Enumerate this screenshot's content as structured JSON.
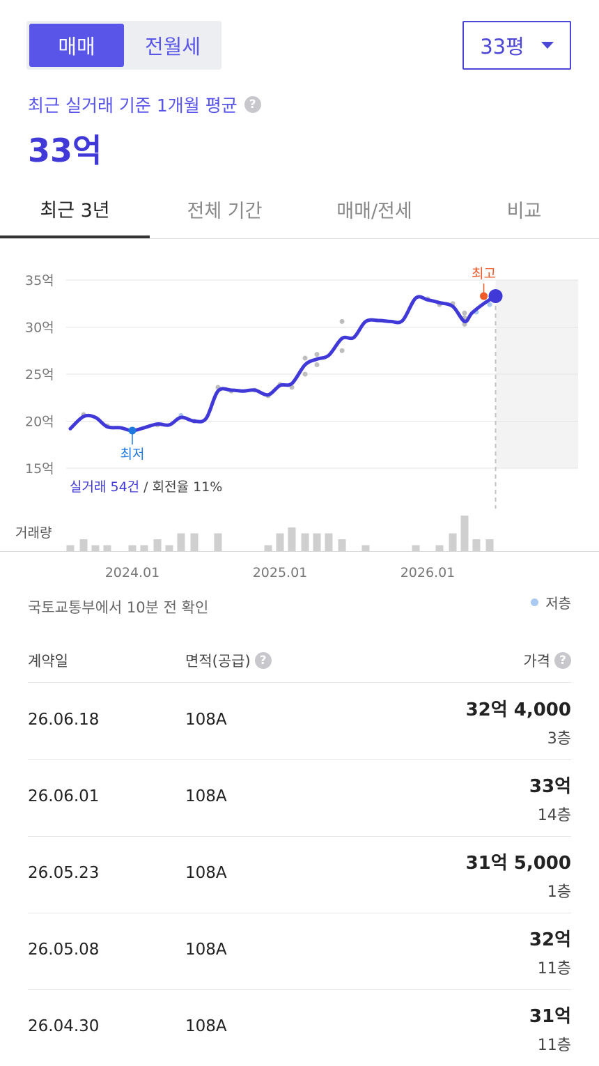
{
  "segment": {
    "sale": "매매",
    "rent": "전월세"
  },
  "area_selector": {
    "value": "33평",
    "icon": "caret-down-icon"
  },
  "summary": {
    "label": "최근 실거래 기준 1개월 평균",
    "help": "?",
    "value": "33억"
  },
  "tabs": [
    {
      "label": "최근 3년"
    },
    {
      "label": "전체 기간"
    },
    {
      "label": "매매/전세"
    },
    {
      "label": "비교"
    }
  ],
  "colors": {
    "accent": "#4039d8",
    "high": "#f05a28",
    "low": "#1f78e0",
    "low_floor": "#a9c9f0",
    "dot": "#bdbdbd"
  },
  "chart_data": {
    "type": "line",
    "y_unit": "억",
    "ylim": [
      15,
      35
    ],
    "y_ticks": [
      "35억",
      "30억",
      "25억",
      "20억",
      "15억"
    ],
    "x_ticks": [
      "2024.01",
      "2025.01",
      "2026.01"
    ],
    "x_tick_values": [
      2024.0,
      2025.0,
      2026.0
    ],
    "grid": true,
    "line": {
      "x": [
        2023.58,
        2023.67,
        2023.75,
        2023.83,
        2023.92,
        2024.0,
        2024.08,
        2024.17,
        2024.25,
        2024.33,
        2024.42,
        2024.5,
        2024.58,
        2024.67,
        2024.75,
        2024.83,
        2024.92,
        2025.0,
        2025.08,
        2025.17,
        2025.25,
        2025.33,
        2025.42,
        2025.5,
        2025.58,
        2025.67,
        2025.75,
        2025.83,
        2025.92,
        2026.0,
        2026.08,
        2026.17,
        2026.25,
        2026.3,
        2026.38,
        2026.46
      ],
      "y": [
        19.2,
        20.5,
        20.4,
        19.4,
        19.3,
        19.0,
        19.3,
        19.7,
        19.6,
        20.4,
        20.0,
        20.3,
        23.2,
        23.3,
        23.2,
        23.3,
        22.8,
        23.8,
        24.0,
        26.0,
        26.6,
        27.0,
        28.8,
        28.9,
        30.6,
        30.7,
        30.6,
        30.7,
        33.1,
        32.9,
        32.6,
        32.2,
        30.6,
        31.5,
        32.5,
        33.3
      ]
    },
    "trades": {
      "x": [
        2023.67,
        2023.83,
        2024.0,
        2024.17,
        2024.33,
        2024.42,
        2024.58,
        2024.67,
        2024.83,
        2024.92,
        2025.0,
        2025.08,
        2025.17,
        2025.17,
        2025.25,
        2025.25,
        2025.42,
        2025.42,
        2026.0,
        2026.08,
        2026.17,
        2026.25,
        2026.25,
        2026.25,
        2026.33,
        2026.42
      ],
      "y": [
        20.7,
        19.5,
        19.0,
        19.6,
        20.6,
        20.0,
        23.6,
        23.2,
        23.3,
        22.7,
        23.9,
        23.6,
        26.7,
        25.0,
        27.1,
        26.0,
        30.6,
        27.5,
        33.0,
        32.4,
        32.5,
        31.5,
        31.0,
        30.3,
        31.6,
        32.4
      ],
      "floor_low": [
        false,
        false,
        false,
        false,
        true,
        false,
        false,
        false,
        false,
        false,
        false,
        false,
        false,
        false,
        false,
        false,
        false,
        false,
        false,
        false,
        false,
        false,
        false,
        false,
        true,
        true
      ]
    },
    "lowest": {
      "label": "최저",
      "x": 2024.0,
      "y": 19.0
    },
    "highest": {
      "label": "최고",
      "x": 2026.38,
      "y": 33.3
    },
    "current": {
      "x": 2026.46,
      "y": 33.3
    },
    "forecast_start": 2026.46,
    "volume": {
      "label": "거래량",
      "x": [
        2023.58,
        2023.67,
        2023.75,
        2023.83,
        2024.0,
        2024.08,
        2024.17,
        2024.25,
        2024.33,
        2024.42,
        2024.58,
        2024.92,
        2025.0,
        2025.08,
        2025.17,
        2025.25,
        2025.33,
        2025.42,
        2025.58,
        2025.92,
        2026.08,
        2026.17,
        2026.25,
        2026.33,
        2026.42
      ],
      "count": [
        1,
        2,
        1,
        1,
        1,
        1,
        2,
        1,
        3,
        3,
        3,
        1,
        3,
        4,
        3,
        3,
        3,
        2,
        1,
        1,
        1,
        3,
        6,
        2,
        2
      ]
    },
    "stats": {
      "trades_label": "실거래 54건",
      "turnover_label": "/ 회전율 11%"
    }
  },
  "source": {
    "text": "국토교통부에서 10분 전 확인"
  },
  "legend": {
    "low_floor": "저층"
  },
  "table": {
    "headers": {
      "date": "계약일",
      "area": "면적(공급)",
      "price": "가격"
    },
    "rows": [
      {
        "date": "26.06.18",
        "area": "108A",
        "price": "32억 4,000",
        "floor": "3층"
      },
      {
        "date": "26.06.01",
        "area": "108A",
        "price": "33억",
        "floor": "14층"
      },
      {
        "date": "26.05.23",
        "area": "108A",
        "price": "31억 5,000",
        "floor": "1층"
      },
      {
        "date": "26.05.08",
        "area": "108A",
        "price": "32억",
        "floor": "11층"
      },
      {
        "date": "26.04.30",
        "area": "108A",
        "price": "31억",
        "floor": "11층"
      }
    ]
  }
}
